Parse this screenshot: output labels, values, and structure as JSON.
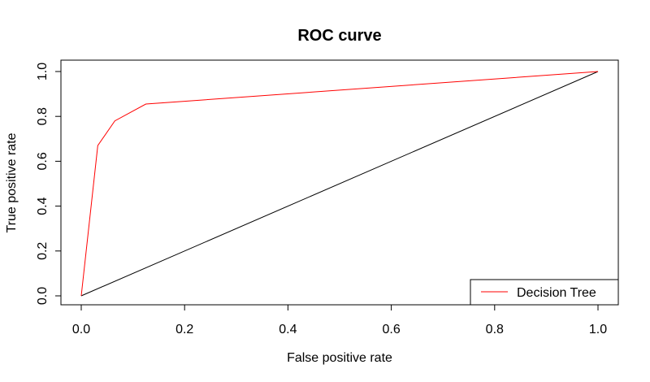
{
  "chart_data": {
    "type": "line",
    "title": "ROC curve",
    "xlabel": "False positive rate",
    "ylabel": "True positive rate",
    "xlim": [
      0,
      1
    ],
    "ylim": [
      0,
      1
    ],
    "x_ticks": [
      "0.0",
      "0.2",
      "0.4",
      "0.6",
      "0.8",
      "1.0"
    ],
    "y_ticks": [
      "0.0",
      "0.2",
      "0.4",
      "0.6",
      "0.8",
      "1.0"
    ],
    "grid": false,
    "legend_position": "bottom-right",
    "series": [
      {
        "name": "Decision Tree",
        "color": "#ff0000",
        "x": [
          0.0,
          0.032,
          0.065,
          0.125,
          1.0
        ],
        "y": [
          0.0,
          0.67,
          0.78,
          0.855,
          1.0
        ]
      },
      {
        "color": "#000000",
        "x": [
          0.0,
          1.0
        ],
        "y": [
          0.0,
          1.0
        ]
      }
    ]
  }
}
